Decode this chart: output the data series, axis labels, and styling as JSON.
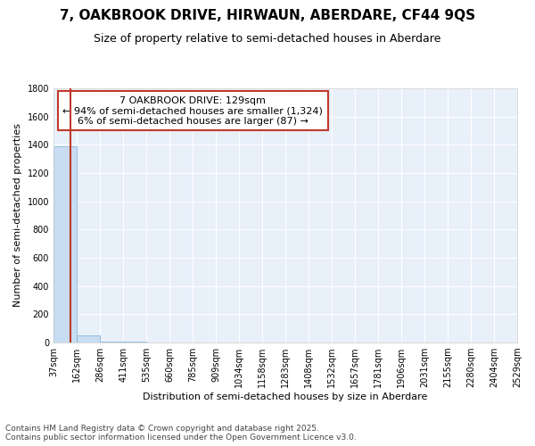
{
  "title": "7, OAKBROOK DRIVE, HIRWAUN, ABERDARE, CF44 9QS",
  "subtitle": "Size of property relative to semi-detached houses in Aberdare",
  "xlabel": "Distribution of semi-detached houses by size in Aberdare",
  "ylabel": "Number of semi-detached properties",
  "footnote1": "Contains HM Land Registry data © Crown copyright and database right 2025.",
  "footnote2": "Contains public sector information licensed under the Open Government Licence v3.0.",
  "annotation_line1": "7 OAKBROOK DRIVE: 129sqm",
  "annotation_line2": "← 94% of semi-detached houses are smaller (1,324)",
  "annotation_line3": "6% of semi-detached houses are larger (87) →",
  "bins": [
    37,
    162,
    286,
    411,
    535,
    660,
    785,
    909,
    1034,
    1158,
    1283,
    1408,
    1532,
    1657,
    1781,
    1906,
    2031,
    2155,
    2280,
    2404,
    2529
  ],
  "bin_labels": [
    "37sqm",
    "162sqm",
    "286sqm",
    "411sqm",
    "535sqm",
    "660sqm",
    "785sqm",
    "909sqm",
    "1034sqm",
    "1158sqm",
    "1283sqm",
    "1408sqm",
    "1532sqm",
    "1657sqm",
    "1781sqm",
    "1906sqm",
    "2031sqm",
    "2155sqm",
    "2280sqm",
    "2404sqm",
    "2529sqm"
  ],
  "counts": [
    1390,
    50,
    8,
    4,
    2,
    1,
    1,
    0,
    0,
    0,
    1,
    0,
    0,
    0,
    0,
    0,
    0,
    0,
    0,
    0
  ],
  "bar_color": "#c8ddf2",
  "bar_edge_color": "#7bafd4",
  "vline_color": "#c0392b",
  "vline_x": 129,
  "ylim": [
    0,
    1800
  ],
  "annotation_box_color": "#c0392b",
  "background_color": "#ffffff",
  "plot_bg_color": "#e8f0fa",
  "grid_color": "#ffffff",
  "title_fontsize": 11,
  "subtitle_fontsize": 9,
  "axis_label_fontsize": 8,
  "tick_fontsize": 7,
  "annotation_fontsize": 8,
  "footnote_fontsize": 6.5
}
